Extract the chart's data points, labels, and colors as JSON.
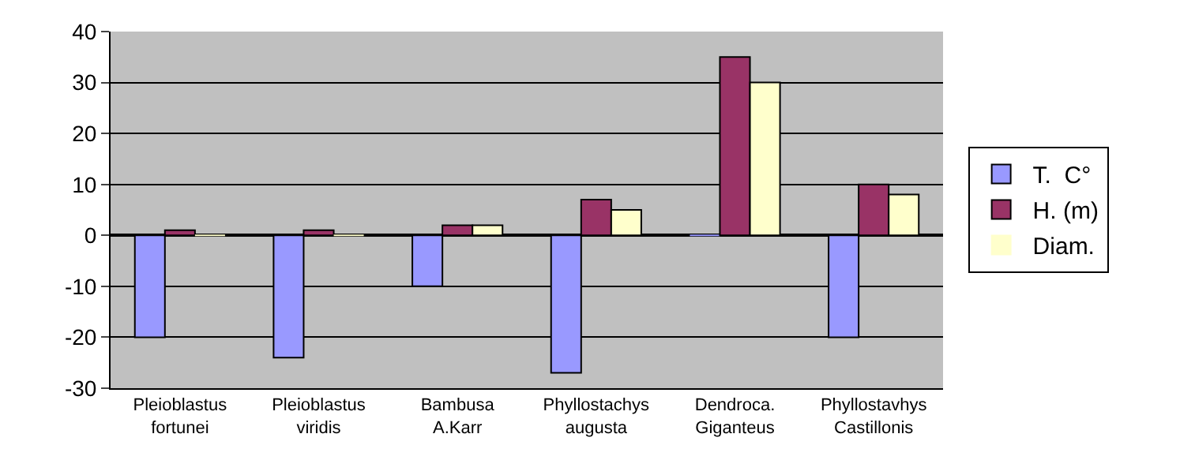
{
  "chart_data": {
    "type": "bar",
    "categories": [
      "Pleioblastus fortunei",
      "Pleioblastus viridis",
      "Bambusa A.Karr",
      "Phyllostachys augusta",
      "Dendroca. Giganteus",
      "Phyllostavhys Castillonis"
    ],
    "series": [
      {
        "name": "T.  C°",
        "color": "#9999ff",
        "values": [
          -20,
          -24,
          -10,
          -27,
          0,
          -20
        ]
      },
      {
        "name": "H. (m)",
        "color": "#993366",
        "values": [
          1,
          1,
          2,
          7,
          35,
          10
        ]
      },
      {
        "name": "Diam.",
        "color": "#ffffcc",
        "values": [
          0,
          0,
          2,
          5,
          30,
          8
        ]
      }
    ],
    "ylim": [
      -30,
      40
    ],
    "yticks": [
      -30,
      -20,
      -10,
      0,
      10,
      20,
      30,
      40
    ],
    "grid": "y",
    "legend": "right"
  }
}
